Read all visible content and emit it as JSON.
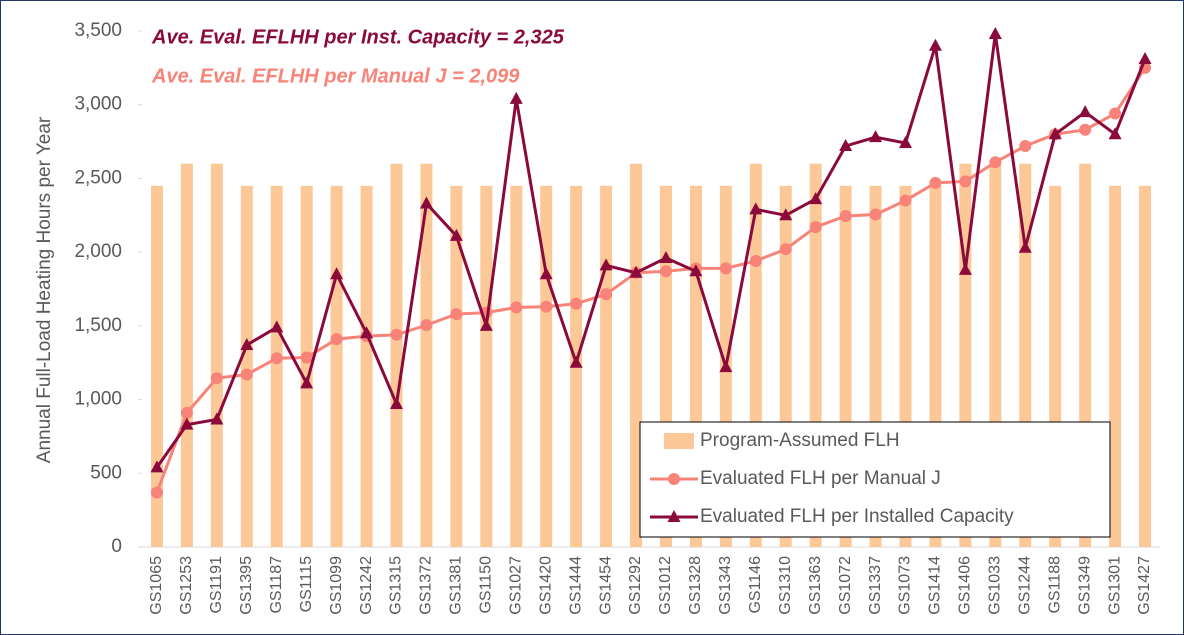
{
  "chart_data": {
    "type": "bar-line",
    "ylabel": "Annual Full-Load Heating Hours per Year",
    "annotations": [
      {
        "text": "Ave. Eval. EFLHH per Inst. Capacity = 2,325",
        "color": "#8b0a3c"
      },
      {
        "text": "Ave. Eval. EFLHH per Manual J = 2,099",
        "color": "#f88379"
      }
    ],
    "categories": [
      "GS1065",
      "GS1253",
      "GS1191",
      "GS1395",
      "GS1187",
      "GS1115",
      "GS1099",
      "GS1242",
      "GS1315",
      "GS1372",
      "GS1381",
      "GS1150",
      "GS1027",
      "GS1420",
      "GS1444",
      "GS1454",
      "GS1292",
      "GS1012",
      "GS1328",
      "GS1343",
      "GS1146",
      "GS1310",
      "GS1363",
      "GS1072",
      "GS1337",
      "GS1073",
      "GS1414",
      "GS1406",
      "GS1033",
      "GS1244",
      "GS1188",
      "GS1349",
      "GS1301",
      "GS1427"
    ],
    "series": [
      {
        "name": "Program-Assumed FLH",
        "type": "bar",
        "color": "#fdc897",
        "values": [
          2450,
          2600,
          2600,
          2450,
          2450,
          2450,
          2450,
          2450,
          2600,
          2600,
          2450,
          2450,
          2450,
          2450,
          2450,
          2450,
          2600,
          2450,
          2450,
          2450,
          2600,
          2450,
          2600,
          2450,
          2450,
          2450,
          2450,
          2600,
          2600,
          2600,
          2450,
          2600,
          2450,
          2450
        ]
      },
      {
        "name": "Evaluated FLH per Manual J",
        "type": "line",
        "marker": "circle",
        "color": "#f88379",
        "values": [
          370,
          910,
          1145,
          1170,
          1280,
          1285,
          1410,
          1430,
          1440,
          1505,
          1580,
          1590,
          1625,
          1630,
          1650,
          1715,
          1860,
          1870,
          1890,
          1890,
          1940,
          2020,
          2170,
          2245,
          2255,
          2350,
          2470,
          2480,
          2610,
          2720,
          2800,
          2830,
          2940,
          3250
        ]
      },
      {
        "name": "Evaluated FLH per Installed Capacity",
        "type": "line",
        "marker": "triangle",
        "color": "#8b0a3c",
        "values": [
          540,
          830,
          865,
          1370,
          1490,
          1110,
          1850,
          1450,
          970,
          2330,
          2110,
          1500,
          3040,
          1850,
          1250,
          1910,
          1860,
          1960,
          1870,
          1220,
          2290,
          2250,
          2360,
          2720,
          2780,
          2740,
          3400,
          1880,
          3480,
          2030,
          2800,
          2950,
          2800,
          3310
        ]
      }
    ],
    "ylim": [
      0,
      3500
    ],
    "yticks": [
      0,
      500,
      {
        "value": 1000,
        "label": "1,000"
      },
      {
        "value": 1500,
        "label": "1,500"
      },
      {
        "value": 2000,
        "label": "2,000"
      },
      {
        "value": 2500,
        "label": "2,500"
      },
      {
        "value": 3000,
        "label": "3,000"
      },
      {
        "value": 3500,
        "label": "3,500"
      }
    ],
    "grid": false,
    "legend": "bottom-right"
  }
}
